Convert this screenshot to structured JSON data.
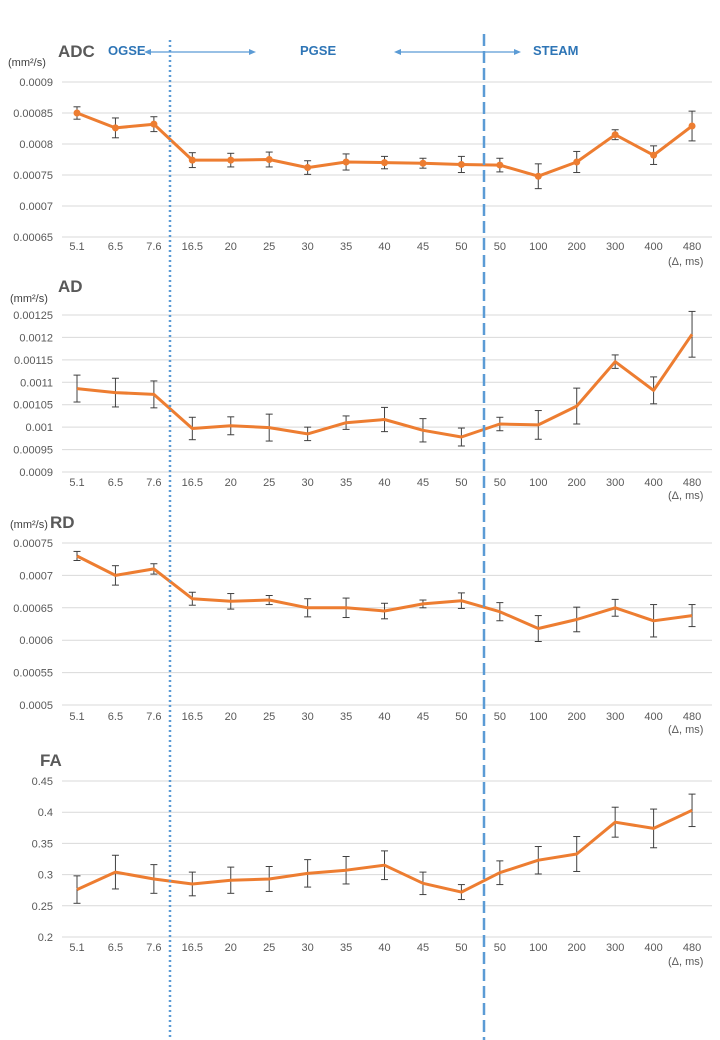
{
  "chart_data": [
    {
      "type": "line",
      "title": "ADC",
      "ylabel": "(mm²/s)",
      "xlabel": "(Δ, ms)",
      "categories": [
        "5.1",
        "6.5",
        "7.6",
        "16.5",
        "20",
        "25",
        "30",
        "35",
        "40",
        "45",
        "50",
        "50",
        "100",
        "200",
        "300",
        "400",
        "480"
      ],
      "yticks": [
        "0.0009",
        "0.00085",
        "0.0008",
        "0.00075",
        "0.0007",
        "0.00065"
      ],
      "ylim": [
        0.00065,
        0.0009
      ],
      "grid": true,
      "values": [
        0.00085,
        0.000826,
        0.000832,
        0.000774,
        0.000774,
        0.000775,
        0.000762,
        0.000771,
        0.00077,
        0.000769,
        0.000767,
        0.000766,
        0.000748,
        0.000771,
        0.000815,
        0.000782,
        0.000829
      ],
      "errors": [
        1e-05,
        1.6e-05,
        1.2e-05,
        1.2e-05,
        1.1e-05,
        1.2e-05,
        1.1e-05,
        1.3e-05,
        1e-05,
        8e-06,
        1.3e-05,
        1.1e-05,
        2e-05,
        1.7e-05,
        8e-06,
        1.5e-05,
        2.4e-05
      ],
      "markers": true
    },
    {
      "type": "line",
      "title": "AD",
      "ylabel": "(mm²/s)",
      "xlabel": "(Δ, ms)",
      "categories": [
        "5.1",
        "6.5",
        "7.6",
        "16.5",
        "20",
        "25",
        "30",
        "35",
        "40",
        "45",
        "50",
        "50",
        "100",
        "200",
        "300",
        "400",
        "480"
      ],
      "yticks": [
        "0.00125",
        "0.0012",
        "0.00115",
        "0.0011",
        "0.00105",
        "0.001",
        "0.00095",
        "0.0009"
      ],
      "ylim": [
        0.0009,
        0.00125
      ],
      "grid": true,
      "values": [
        0.001086,
        0.001077,
        0.001073,
        0.000997,
        0.001003,
        0.000999,
        0.000985,
        0.00101,
        0.001017,
        0.000993,
        0.000978,
        0.001007,
        0.001005,
        0.001047,
        0.001146,
        0.001082,
        0.001207
      ],
      "errors": [
        3e-05,
        3.2e-05,
        3e-05,
        2.5e-05,
        2e-05,
        3e-05,
        1.5e-05,
        1.5e-05,
        2.7e-05,
        2.6e-05,
        2e-05,
        1.5e-05,
        3.2e-05,
        4e-05,
        1.5e-05,
        3e-05,
        5.1e-05
      ],
      "markers": false
    },
    {
      "type": "line",
      "title": "RD",
      "ylabel": "(mm²/s)",
      "xlabel": "(Δ, ms)",
      "categories": [
        "5.1",
        "6.5",
        "7.6",
        "16.5",
        "20",
        "25",
        "30",
        "35",
        "40",
        "45",
        "50",
        "50",
        "100",
        "200",
        "300",
        "400",
        "480"
      ],
      "yticks": [
        "0.00075",
        "0.0007",
        "0.00065",
        "0.0006",
        "0.00055",
        "0.0005"
      ],
      "ylim": [
        0.0005,
        0.00075
      ],
      "grid": true,
      "values": [
        0.00073,
        0.0007,
        0.00071,
        0.000664,
        0.00066,
        0.000662,
        0.00065,
        0.00065,
        0.000645,
        0.000656,
        0.000661,
        0.000644,
        0.000618,
        0.000632,
        0.00065,
        0.00063,
        0.000638
      ],
      "errors": [
        7e-06,
        1.5e-05,
        8e-06,
        1e-05,
        1.2e-05,
        7e-06,
        1.4e-05,
        1.5e-05,
        1.2e-05,
        6e-06,
        1.2e-05,
        1.4e-05,
        2e-05,
        1.9e-05,
        1.3e-05,
        2.5e-05,
        1.7e-05
      ],
      "markers": false
    },
    {
      "type": "line",
      "title": "FA",
      "ylabel": "",
      "xlabel": "(Δ, ms)",
      "categories": [
        "5.1",
        "6.5",
        "7.6",
        "16.5",
        "20",
        "25",
        "30",
        "35",
        "40",
        "45",
        "50",
        "50",
        "100",
        "200",
        "300",
        "400",
        "480"
      ],
      "yticks": [
        "0.45",
        "0.4",
        "0.35",
        "0.3",
        "0.25",
        "0.2"
      ],
      "ylim": [
        0.2,
        0.45
      ],
      "grid": true,
      "values": [
        0.276,
        0.304,
        0.293,
        0.285,
        0.291,
        0.293,
        0.302,
        0.307,
        0.315,
        0.286,
        0.272,
        0.303,
        0.323,
        0.333,
        0.384,
        0.374,
        0.403
      ],
      "errors": [
        0.022,
        0.027,
        0.023,
        0.019,
        0.021,
        0.02,
        0.022,
        0.022,
        0.023,
        0.018,
        0.012,
        0.019,
        0.022,
        0.028,
        0.024,
        0.031,
        0.026
      ],
      "markers": false
    }
  ],
  "phases": {
    "ogse": "OGSE",
    "pgse": "PGSE",
    "steam": "STEAM"
  },
  "colors": {
    "series": "#ED7D31",
    "phase_text": "#2E75B6",
    "divider": "#5B9BD5",
    "grid": "#D9D9D9",
    "error_bar": "#404040"
  }
}
